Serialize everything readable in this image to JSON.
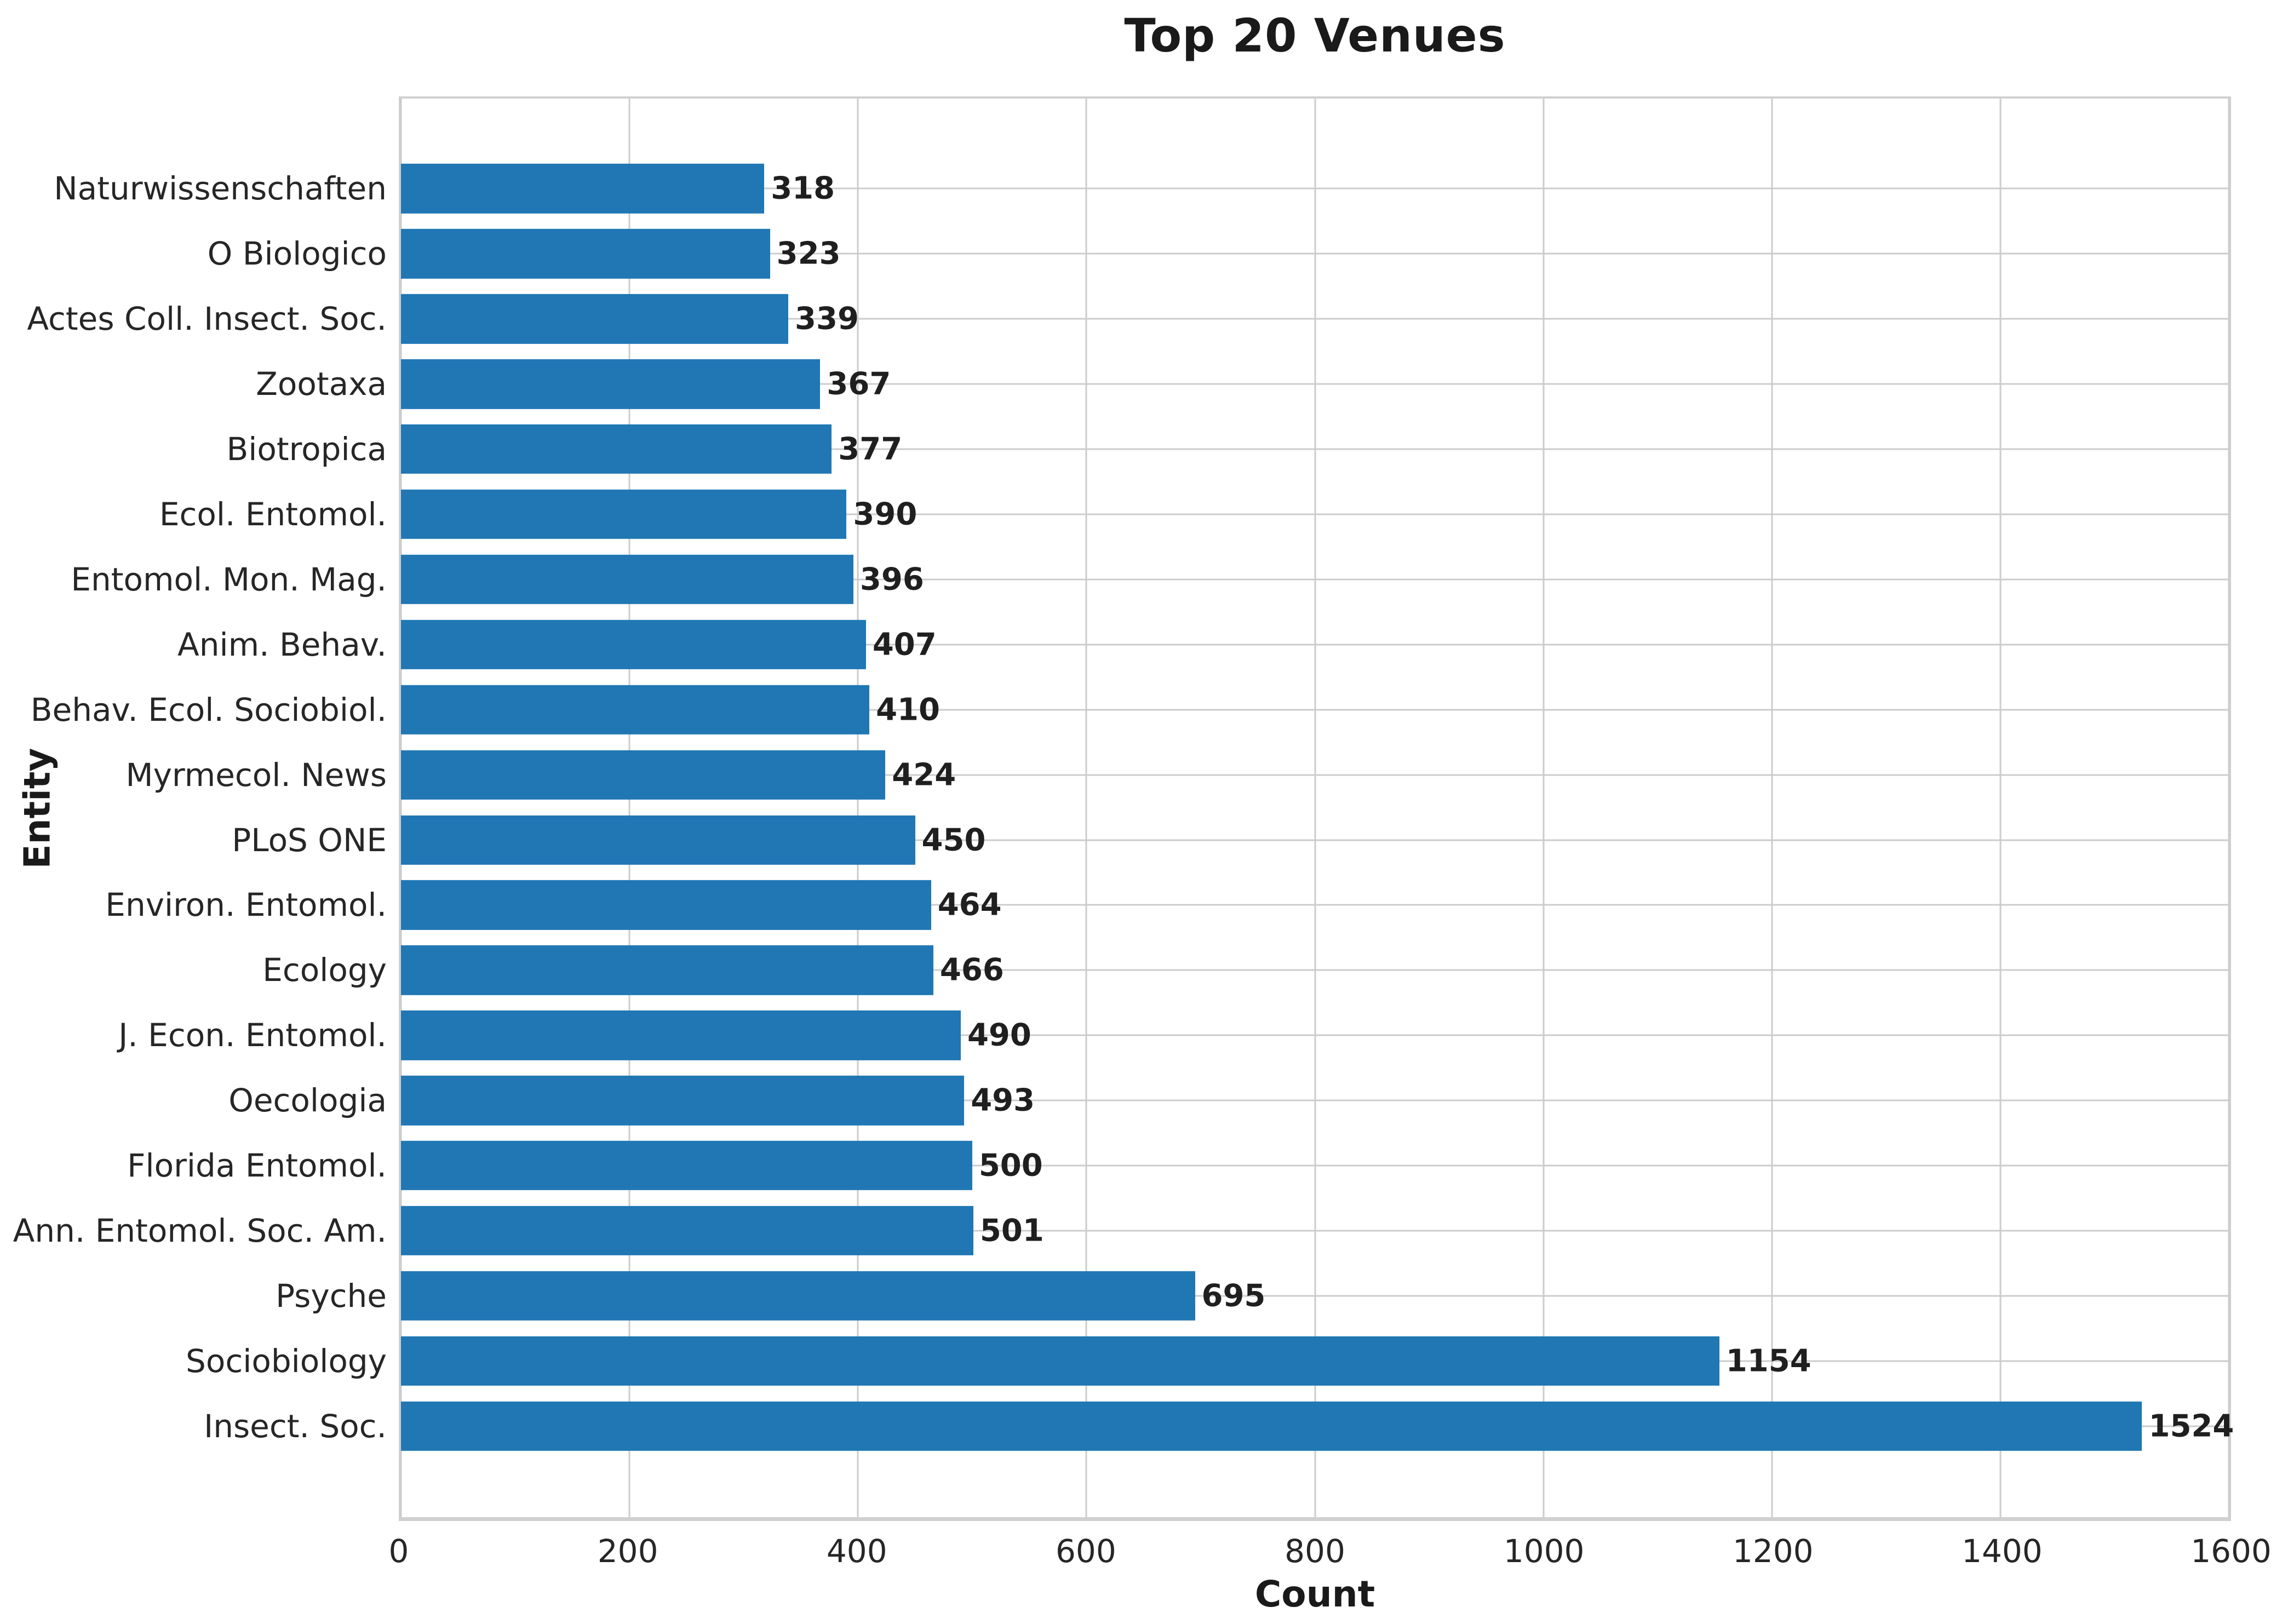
{
  "chart_data": {
    "type": "bar",
    "orientation": "horizontal",
    "title": "Top 20 Venues",
    "xlabel": "Count",
    "ylabel": "Entity",
    "xlim": [
      0,
      1600
    ],
    "xticks": [
      0,
      200,
      400,
      600,
      800,
      1000,
      1200,
      1400,
      1600
    ],
    "grid": true,
    "legend_position": "none",
    "bar_color": "#2077b4",
    "grid_color": "#cccccc",
    "categories": [
      "Naturwissenschaften",
      "O Biologico",
      "Actes Coll. Insect. Soc.",
      "Zootaxa",
      "Biotropica",
      "Ecol. Entomol.",
      "Entomol. Mon. Mag.",
      "Anim. Behav.",
      "Behav. Ecol. Sociobiol.",
      "Myrmecol. News",
      "PLoS ONE",
      "Environ. Entomol.",
      "Ecology",
      "J. Econ. Entomol.",
      "Oecologia",
      "Florida Entomol.",
      "Ann. Entomol. Soc. Am.",
      "Psyche",
      "Sociobiology",
      "Insect. Soc."
    ],
    "values": [
      318,
      323,
      339,
      367,
      377,
      390,
      396,
      407,
      410,
      424,
      450,
      464,
      466,
      490,
      493,
      500,
      501,
      695,
      1154,
      1524
    ]
  }
}
